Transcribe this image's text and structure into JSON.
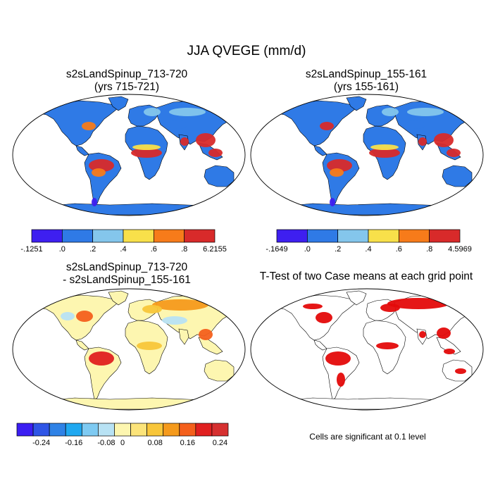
{
  "figure": {
    "title": "JJA QVEGE (mm/d)"
  },
  "panels": [
    {
      "id": "case1",
      "title_line1": "s2sLandSpinup_713-720",
      "title_line2": "(yrs 715-721)",
      "colorbar": {
        "colors": [
          "#3e1ff0",
          "#2f7ae6",
          "#84c6ec",
          "#f8e04a",
          "#f77b1a",
          "#d82a2a"
        ],
        "labels": [
          "-.1251",
          ".0",
          ".2",
          ".4",
          ".6",
          ".8",
          "6.2155"
        ]
      }
    },
    {
      "id": "case2",
      "title_line1": "s2sLandSpinup_155-161",
      "title_line2": "(yrs 155-161)",
      "colorbar": {
        "colors": [
          "#3e1ff0",
          "#2f7ae6",
          "#84c6ec",
          "#f8e04a",
          "#f77b1a",
          "#d82a2a"
        ],
        "labels": [
          "-.1649",
          ".0",
          ".2",
          ".4",
          ".6",
          ".8",
          "4.5969"
        ]
      }
    },
    {
      "id": "diff",
      "title_line1": "s2sLandSpinup_713-720",
      "title_line2": "- s2sLandSpinup_155-161",
      "colorbar": {
        "colors": [
          "#3b1ef2",
          "#2f55e6",
          "#2f82e6",
          "#20a8f0",
          "#7ecaf2",
          "#b8e2f4",
          "#fdf6b0",
          "#fce47a",
          "#f8c63a",
          "#f59a1c",
          "#f4601c",
          "#e02020",
          "#d63030"
        ],
        "labels": [
          "-0.24",
          "-0.16",
          "-0.08",
          "0",
          "0.08",
          "0.16",
          "0.24"
        ]
      }
    },
    {
      "id": "ttest",
      "title_line1": "T-Test of two Case means at each grid point",
      "note": "Cells are significant at 0.1 level"
    }
  ]
}
